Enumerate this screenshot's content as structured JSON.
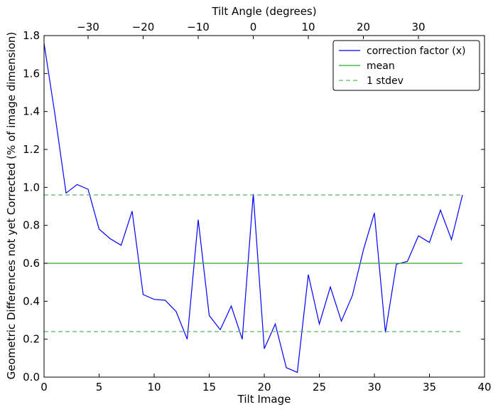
{
  "chart_data": {
    "type": "line",
    "title": "",
    "xlabel": "Tilt Image",
    "ylabel": "Geometric Differences not yet Corrected (% of image dimension)",
    "x2label": "Tilt Angle (degrees)",
    "xlim": [
      0,
      40
    ],
    "ylim": [
      0,
      1.8
    ],
    "x_ticks": [
      0,
      5,
      10,
      15,
      20,
      25,
      30,
      35,
      40
    ],
    "y_ticks": [
      0.0,
      0.2,
      0.4,
      0.6,
      0.8,
      1.0,
      1.2,
      1.4,
      1.6,
      1.8
    ],
    "x_tick_labels": [
      "0",
      "5",
      "10",
      "15",
      "20",
      "25",
      "30",
      "35",
      "40"
    ],
    "y_tick_labels": [
      "0.0",
      "0.2",
      "0.4",
      "0.6",
      "0.8",
      "1.0",
      "1.2",
      "1.4",
      "1.6",
      "1.8"
    ],
    "x2_ticks": [
      -30,
      -20,
      -10,
      0,
      10,
      20,
      30
    ],
    "x2_tick_labels": [
      "−30",
      "−20",
      "−10",
      "0",
      "10",
      "20",
      "30"
    ],
    "x2_lim": [
      -38,
      42
    ],
    "grid": false,
    "legend_position": "top-right",
    "series": [
      {
        "name": "correction factor (x)",
        "color": "#0000ff",
        "style": "solid",
        "x": [
          0,
          1,
          2,
          3,
          4,
          5,
          6,
          7,
          8,
          9,
          10,
          11,
          12,
          13,
          14,
          15,
          16,
          17,
          18,
          19,
          20,
          21,
          22,
          23,
          24,
          25,
          26,
          27,
          28,
          29,
          30,
          31,
          32,
          33,
          34,
          35,
          36,
          37,
          38
        ],
        "values": [
          1.76,
          1.38,
          0.97,
          1.015,
          0.99,
          0.78,
          0.73,
          0.695,
          0.875,
          0.435,
          0.41,
          0.405,
          0.345,
          0.2,
          0.83,
          0.325,
          0.25,
          0.375,
          0.2,
          0.965,
          0.15,
          0.28,
          0.05,
          0.025,
          0.54,
          0.28,
          0.475,
          0.295,
          0.43,
          0.67,
          0.865,
          0.235,
          0.595,
          0.61,
          0.745,
          0.71,
          0.88,
          0.725,
          0.96
        ]
      },
      {
        "name": "mean",
        "color": "#32a832",
        "style": "solid",
        "x": [
          0,
          38
        ],
        "values": [
          0.6,
          0.6
        ]
      },
      {
        "name": "1 stdev",
        "color": "#5cb85c",
        "style": "dashed",
        "x": [
          0,
          38
        ],
        "values": [
          0.96,
          0.96
        ]
      },
      {
        "name": "1 stdev",
        "color": "#5cb85c",
        "style": "dashed",
        "x": [
          0,
          38
        ],
        "values": [
          0.24,
          0.24
        ],
        "legend": false
      }
    ]
  }
}
